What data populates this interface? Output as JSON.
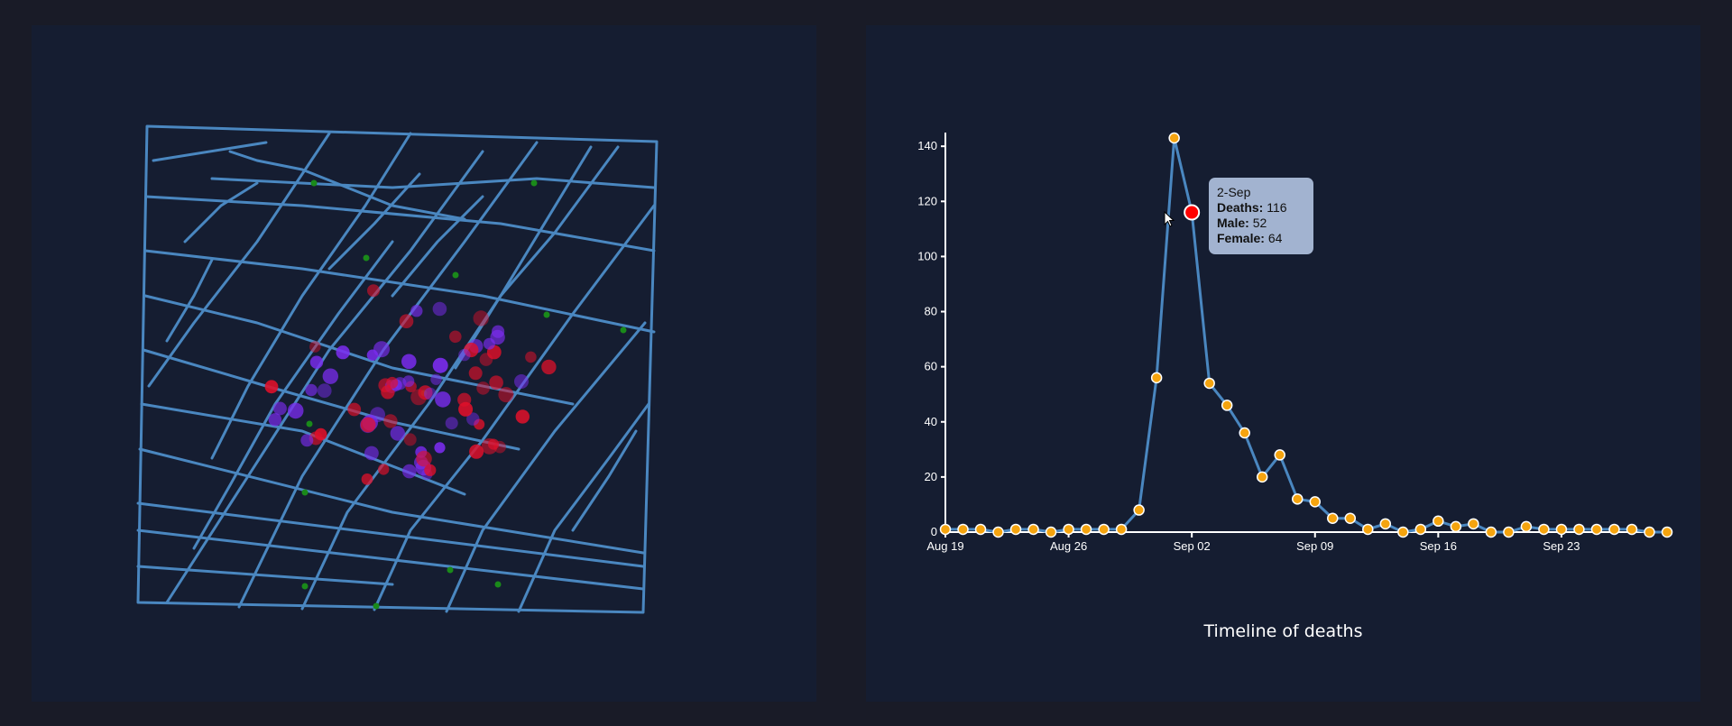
{
  "colors": {
    "background": "#191b27",
    "panel": "#151d31",
    "street": "#4a87c0",
    "pump": "#1a8a1a",
    "death_male": "#7b2cf0",
    "death_female": "#e0102a",
    "point": "#f5a40f",
    "highlight": "#ff0000",
    "tooltip_bg": "#a2b3d0"
  },
  "map": {
    "marker_types": [
      "pump",
      "death-male",
      "death-female"
    ]
  },
  "chart_data": {
    "type": "line",
    "title": "Timeline of deaths",
    "xlabel": "",
    "ylabel": "",
    "x": [
      "1854-08-19",
      "1854-08-20",
      "1854-08-21",
      "1854-08-22",
      "1854-08-23",
      "1854-08-24",
      "1854-08-25",
      "1854-08-26",
      "1854-08-27",
      "1854-08-28",
      "1854-08-29",
      "1854-08-30",
      "1854-08-31",
      "1854-09-01",
      "1854-09-02",
      "1854-09-03",
      "1854-09-04",
      "1854-09-05",
      "1854-09-06",
      "1854-09-07",
      "1854-09-08",
      "1854-09-09",
      "1854-09-10",
      "1854-09-11",
      "1854-09-12",
      "1854-09-13",
      "1854-09-14",
      "1854-09-15",
      "1854-09-16",
      "1854-09-17",
      "1854-09-18",
      "1854-09-19",
      "1854-09-20",
      "1854-09-21",
      "1854-09-22",
      "1854-09-23",
      "1854-09-24",
      "1854-09-25",
      "1854-09-26",
      "1854-09-27",
      "1854-09-28",
      "1854-09-29"
    ],
    "values": [
      1,
      1,
      1,
      0,
      1,
      1,
      0,
      1,
      1,
      1,
      1,
      8,
      56,
      143,
      116,
      54,
      46,
      36,
      20,
      28,
      12,
      11,
      5,
      5,
      1,
      3,
      0,
      1,
      4,
      2,
      3,
      0,
      0,
      2,
      1,
      1,
      1,
      1,
      1,
      1,
      0,
      0
    ],
    "x_ticks": [
      "Aug 19",
      "Aug 26",
      "Sep 02",
      "Sep 09",
      "Sep 16",
      "Sep 23"
    ],
    "y_ticks": [
      0,
      20,
      40,
      60,
      80,
      100,
      120,
      140
    ],
    "ylim": [
      0,
      143
    ],
    "grid": false,
    "legend": "none",
    "highlight_index": 14
  },
  "tooltip": {
    "date": "2-Sep",
    "deaths_label": "Deaths:",
    "deaths_value": "116",
    "male_label": "Male:",
    "male_value": "52",
    "female_label": "Female:",
    "female_value": "64"
  }
}
